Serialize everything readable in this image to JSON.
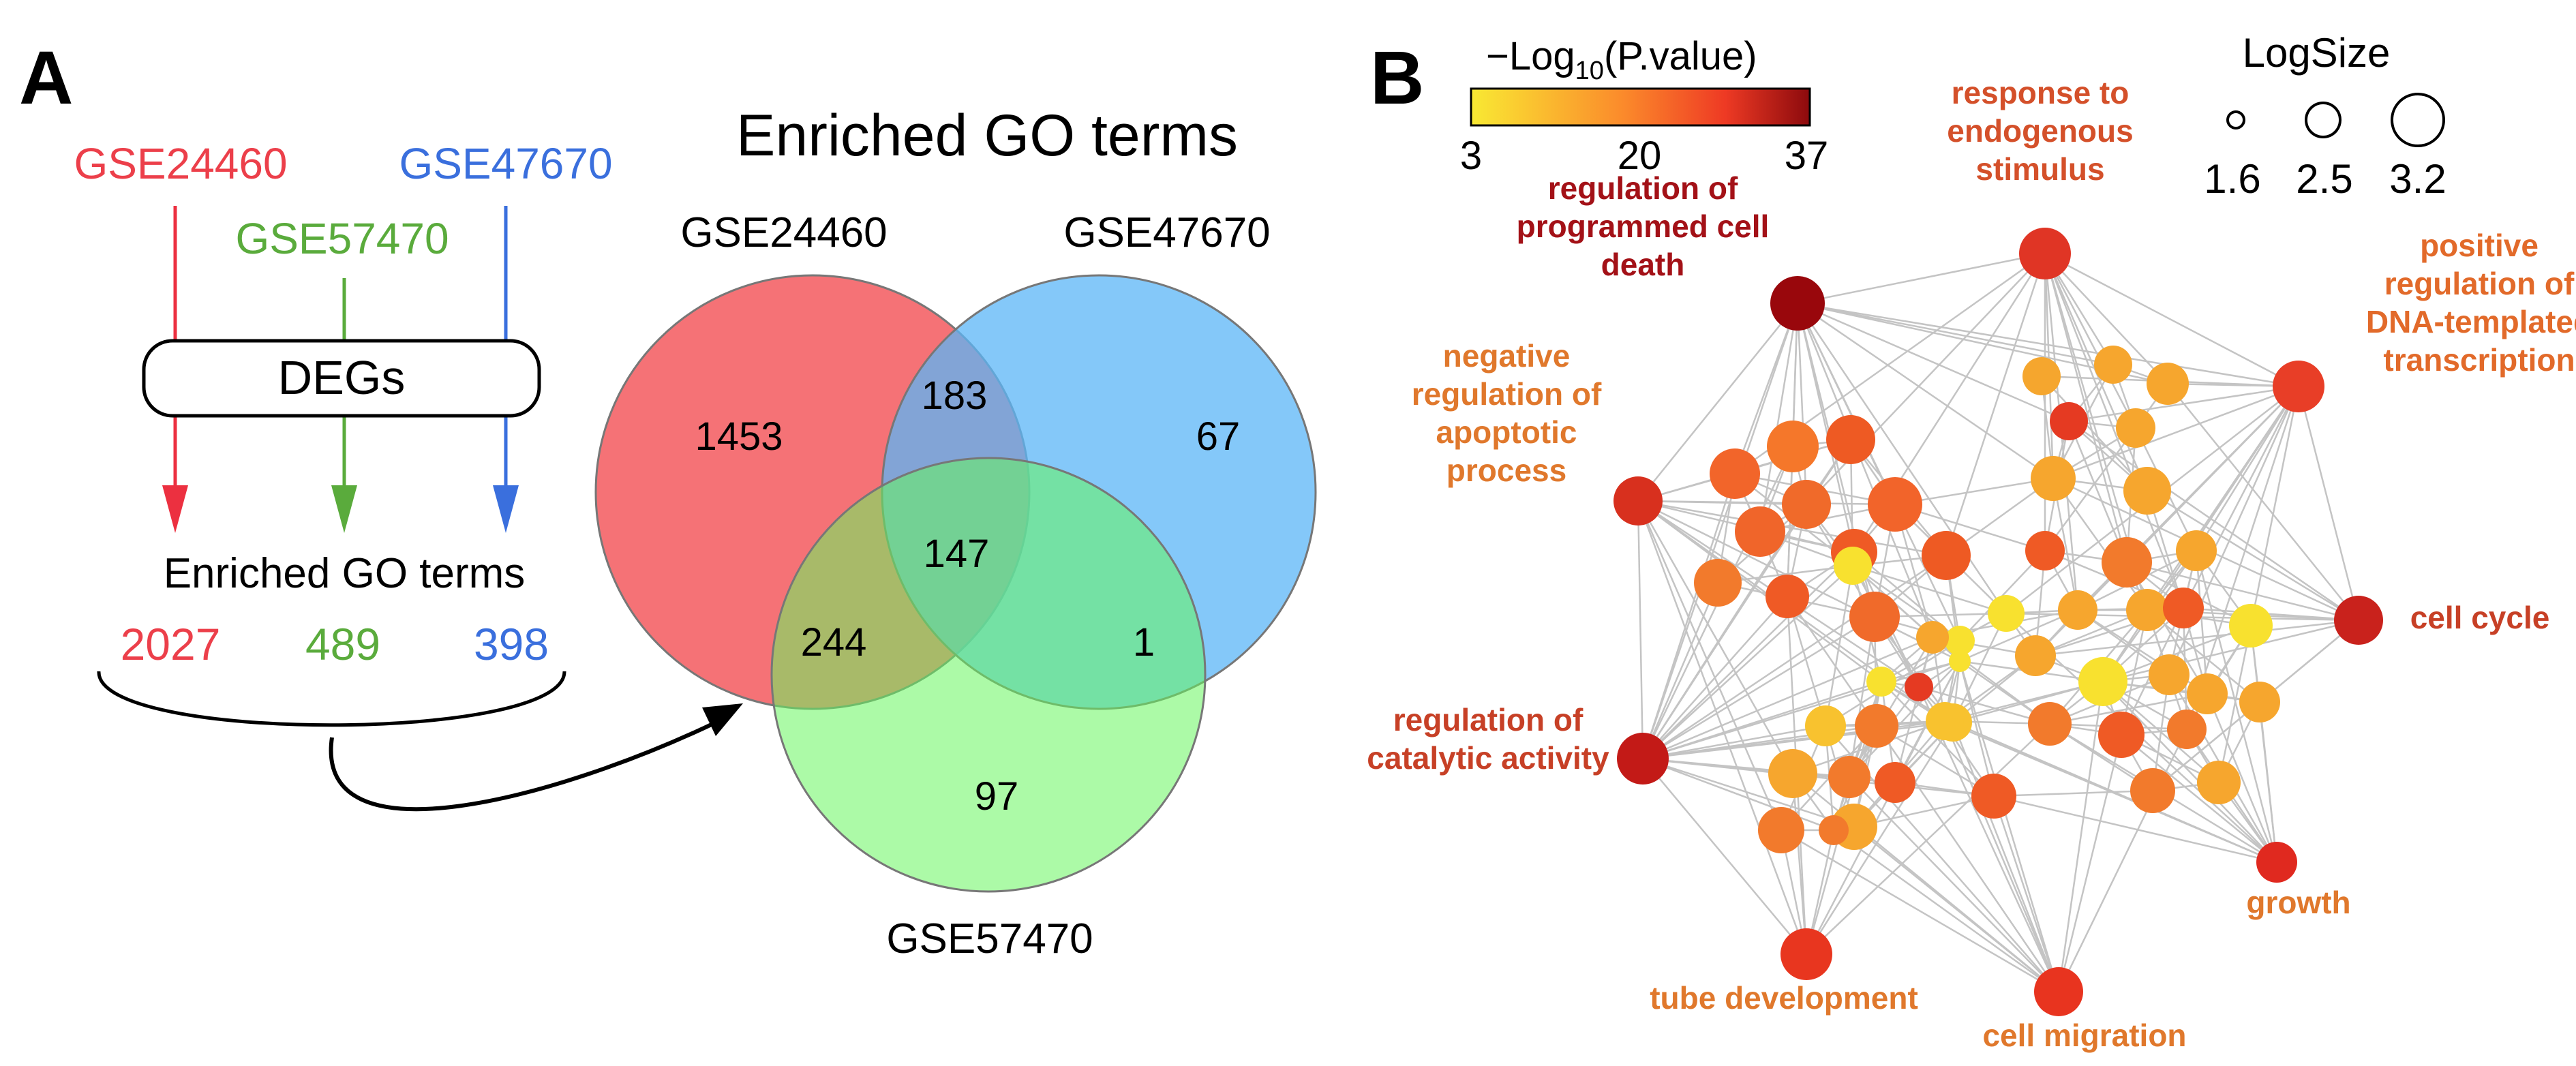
{
  "panel_a": {
    "label": "A",
    "flow": {
      "datasets": [
        {
          "name": "GSE24460",
          "color": "#ec3f4a",
          "go_count": "2027"
        },
        {
          "name": "GSE57470",
          "color": "#5aab3c",
          "go_count": "489"
        },
        {
          "name": "GSE47670",
          "color": "#3a6fdd",
          "go_count": "398"
        }
      ],
      "degs_label": "DEGs",
      "enriched_label": "Enriched GO terms"
    },
    "venn": {
      "title": "Enriched GO terms",
      "sets": [
        {
          "name": "GSE24460",
          "color": "#f45f63"
        },
        {
          "name": "GSE47670",
          "color": "#5bb5f7"
        },
        {
          "name": "GSE57470",
          "color": "#68f55f"
        }
      ],
      "regions": {
        "only_24460": "1453",
        "24460_47670": "183",
        "only_47670": "67",
        "all_three": "147",
        "24460_57470": "244",
        "47670_57470": "1",
        "only_57470": "97"
      }
    }
  },
  "panel_b": {
    "label": "B",
    "color_legend": {
      "title_prefix": "−Log",
      "title_sub": "10",
      "title_suffix": "(P.value)",
      "ticks": [
        "3",
        "20",
        "37"
      ],
      "colors": [
        "#f9e933",
        "#fb8a2b",
        "#ee3a24",
        "#8c0a0d"
      ]
    },
    "size_legend": {
      "title": "LogSize",
      "ticks": [
        "1.6",
        "2.5",
        "3.2"
      ]
    },
    "hubs": [
      {
        "id": "death",
        "lines": [
          "regulation of",
          "programmed cell",
          "death"
        ],
        "label_color": "#a31117",
        "node_color": "#99070c"
      },
      {
        "id": "endo",
        "lines": [
          "response to",
          "endogenous",
          "stimulus"
        ],
        "label_color": "#d4502a",
        "node_color": "#e03525"
      },
      {
        "id": "dna",
        "lines": [
          "positive",
          "regulation of",
          "DNA-templated",
          "transcription"
        ],
        "label_color": "#e26a2a",
        "node_color": "#e83e27"
      },
      {
        "id": "apop",
        "lines": [
          "negative",
          "regulation of",
          "apoptotic",
          "process"
        ],
        "label_color": "#e0782c",
        "node_color": "#d8301e"
      },
      {
        "id": "cycle",
        "lines": [
          "cell cycle"
        ],
        "label_color": "#c74026",
        "node_color": "#c9221c"
      },
      {
        "id": "cat",
        "lines": [
          "regulation of",
          "catalytic activity"
        ],
        "label_color": "#c74026",
        "node_color": "#c31a17"
      },
      {
        "id": "growth",
        "lines": [
          "growth"
        ],
        "label_color": "#e0782c",
        "node_color": "#e0291f"
      },
      {
        "id": "tube",
        "lines": [
          "tube development"
        ],
        "label_color": "#e0782c",
        "node_color": "#e8361f"
      },
      {
        "id": "mig",
        "lines": [
          "cell migration"
        ],
        "label_color": "#e0782c",
        "node_color": "#e8341f"
      }
    ]
  }
}
